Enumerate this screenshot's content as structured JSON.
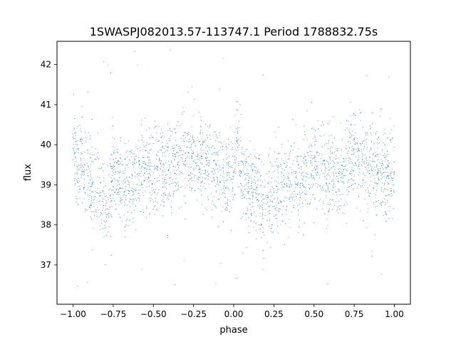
{
  "chart_data": {
    "type": "scatter",
    "title": "1SWASPJ082013.57-113747.1 Period 1788832.75s",
    "xlabel": "phase",
    "ylabel": "flux",
    "xlim": [
      -1.1,
      1.1
    ],
    "ylim": [
      36.02,
      42.58
    ],
    "xticks": [
      -1.0,
      -0.75,
      -0.5,
      -0.25,
      0.0,
      0.25,
      0.5,
      0.75,
      1.0
    ],
    "xtick_labels": [
      "−1.00",
      "−0.75",
      "−0.50",
      "−0.25",
      "0.00",
      "0.25",
      "0.50",
      "0.75",
      "1.00"
    ],
    "yticks": [
      37,
      38,
      39,
      40,
      41,
      42
    ],
    "ytick_labels": [
      "37",
      "38",
      "39",
      "40",
      "41",
      "42"
    ],
    "grid": false,
    "legend": "none",
    "marker_color": "#1f77b4",
    "marker_size": "tiny dots",
    "series": [
      {
        "description_of_shape": "phase-folded light curve, mirrored about phase 0 (x in [-1,1]), dense cloud around flux 39-40",
        "points_approx": [
          {
            "x": -1.0,
            "y": 40.2
          },
          {
            "x": -0.97,
            "y": 39.3
          },
          {
            "x": -0.95,
            "y": 39.8
          },
          {
            "x": -0.93,
            "y": 39.0
          },
          {
            "x": -0.9,
            "y": 39.4
          },
          {
            "x": -0.87,
            "y": 38.7
          },
          {
            "x": -0.85,
            "y": 39.2
          },
          {
            "x": -0.83,
            "y": 38.6
          },
          {
            "x": -0.8,
            "y": 38.3
          },
          {
            "x": -0.77,
            "y": 38.9
          },
          {
            "x": -0.75,
            "y": 39.3
          },
          {
            "x": -0.72,
            "y": 39.1
          },
          {
            "x": -0.7,
            "y": 38.9
          },
          {
            "x": -0.65,
            "y": 39.0
          },
          {
            "x": -0.6,
            "y": 39.2
          },
          {
            "x": -0.55,
            "y": 39.5
          },
          {
            "x": -0.5,
            "y": 39.3
          },
          {
            "x": -0.45,
            "y": 39.6
          },
          {
            "x": -0.42,
            "y": 38.9
          },
          {
            "x": -0.4,
            "y": 39.4
          },
          {
            "x": -0.35,
            "y": 39.5
          },
          {
            "x": -0.3,
            "y": 39.6
          },
          {
            "x": -0.25,
            "y": 39.8
          },
          {
            "x": -0.2,
            "y": 39.7
          },
          {
            "x": -0.15,
            "y": 39.5
          },
          {
            "x": -0.1,
            "y": 39.4
          },
          {
            "x": -0.05,
            "y": 39.1
          },
          {
            "x": 0.0,
            "y": 39.2
          },
          {
            "x": 0.02,
            "y": 40.1
          },
          {
            "x": 0.05,
            "y": 39.3
          },
          {
            "x": 0.1,
            "y": 38.9
          },
          {
            "x": 0.15,
            "y": 39.0
          },
          {
            "x": 0.18,
            "y": 38.3
          },
          {
            "x": 0.2,
            "y": 38.7
          },
          {
            "x": 0.25,
            "y": 38.8
          },
          {
            "x": 0.3,
            "y": 39.0
          },
          {
            "x": 0.35,
            "y": 39.1
          },
          {
            "x": 0.4,
            "y": 39.0
          },
          {
            "x": 0.45,
            "y": 39.3
          },
          {
            "x": 0.5,
            "y": 39.4
          },
          {
            "x": 0.55,
            "y": 39.5
          },
          {
            "x": 0.6,
            "y": 39.2
          },
          {
            "x": 0.65,
            "y": 39.3
          },
          {
            "x": 0.7,
            "y": 39.5
          },
          {
            "x": 0.75,
            "y": 39.8
          },
          {
            "x": 0.8,
            "y": 39.7
          },
          {
            "x": 0.85,
            "y": 39.6
          },
          {
            "x": 0.9,
            "y": 39.4
          },
          {
            "x": 0.95,
            "y": 39.2
          },
          {
            "x": 1.0,
            "y": 39.3
          }
        ]
      }
    ]
  }
}
